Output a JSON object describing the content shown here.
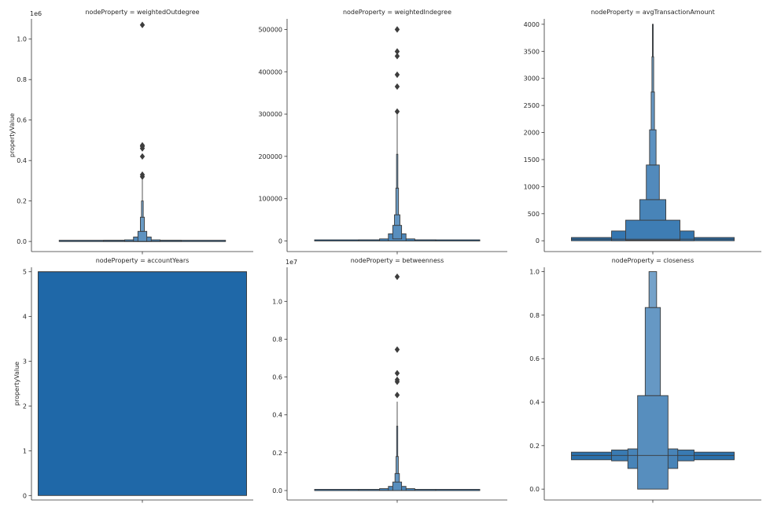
{
  "chart_data": {
    "type": "boxen",
    "ylabel": "propertyValue",
    "panels": [
      {
        "title": "nodeProperty = weightedOutdegree",
        "ylim": [
          -0.05,
          1.1
        ],
        "yticks": [
          0.0,
          0.2,
          0.4,
          0.6,
          0.8,
          1.0
        ],
        "ytick_labels": [
          "0.0",
          "0.2",
          "0.4",
          "0.6",
          "0.8",
          "1.0"
        ],
        "offset": "1e6",
        "show_ylabel": true,
        "levels": [
          {
            "lo": 0.0,
            "hi": 0.0,
            "w": 0.75
          },
          {
            "lo": 0.0,
            "hi": 0.002,
            "w": 0.35
          },
          {
            "lo": 0.0,
            "hi": 0.008,
            "w": 0.16
          },
          {
            "lo": 0.0,
            "hi": 0.022,
            "w": 0.08
          },
          {
            "lo": 0.0,
            "hi": 0.05,
            "w": 0.04
          },
          {
            "lo": 0.05,
            "hi": 0.12,
            "w": 0.018
          },
          {
            "lo": 0.12,
            "hi": 0.2,
            "w": 0.008
          }
        ],
        "median": 0.0,
        "whisker": [
          0.2,
          0.33
        ],
        "outliers": [
          0.32,
          0.33,
          0.42,
          0.46,
          0.47,
          0.475,
          1.07
        ]
      },
      {
        "title": "nodeProperty = weightedIndegree",
        "ylim": [
          -25000,
          525000
        ],
        "yticks": [
          0,
          100000,
          200000,
          300000,
          400000,
          500000
        ],
        "ytick_labels": [
          "0",
          "100000",
          "200000",
          "300000",
          "400000",
          "500000"
        ],
        "offset": "",
        "show_ylabel": false,
        "levels": [
          {
            "lo": 0,
            "hi": 0,
            "w": 0.75
          },
          {
            "lo": 0,
            "hi": 1500,
            "w": 0.35
          },
          {
            "lo": 0,
            "hi": 5000,
            "w": 0.16
          },
          {
            "lo": 0,
            "hi": 17000,
            "w": 0.08
          },
          {
            "lo": 5000,
            "hi": 37000,
            "w": 0.04
          },
          {
            "lo": 37000,
            "hi": 62000,
            "w": 0.025
          },
          {
            "lo": 62000,
            "hi": 125000,
            "w": 0.012
          },
          {
            "lo": 125000,
            "hi": 205000,
            "w": 0.006
          }
        ],
        "median": 0,
        "whisker": [
          205000,
          300000
        ],
        "outliers": [
          306000,
          365000,
          393000,
          437000,
          448000,
          500000
        ]
      },
      {
        "title": "nodeProperty = avgTransactionAmount",
        "ylim": [
          -200,
          4100
        ],
        "yticks": [
          0,
          500,
          1000,
          1500,
          2000,
          2500,
          3000,
          3500,
          4000
        ],
        "ytick_labels": [
          "0",
          "500",
          "1000",
          "1500",
          "2000",
          "2500",
          "3000",
          "3500",
          "4000"
        ],
        "offset": "",
        "show_ylabel": false,
        "levels": [
          {
            "lo": 0,
            "hi": 60,
            "w": 0.75
          },
          {
            "lo": 0,
            "hi": 180,
            "w": 0.38
          },
          {
            "lo": 10,
            "hi": 380,
            "w": 0.25
          },
          {
            "lo": 380,
            "hi": 760,
            "w": 0.12
          },
          {
            "lo": 760,
            "hi": 1400,
            "w": 0.06
          },
          {
            "lo": 1400,
            "hi": 2050,
            "w": 0.03
          },
          {
            "lo": 2050,
            "hi": 2750,
            "w": 0.015
          },
          {
            "lo": 2750,
            "hi": 3400,
            "w": 0.008
          },
          {
            "lo": 3400,
            "hi": 4000,
            "w": 0.004
          }
        ],
        "median": 30,
        "whisker": [
          4000,
          4000
        ],
        "outliers": []
      },
      {
        "title": "nodeProperty = accountYears",
        "ylim": [
          -0.1,
          5.1
        ],
        "yticks": [
          0,
          1,
          2,
          3,
          4,
          5
        ],
        "ytick_labels": [
          "0",
          "1",
          "2",
          "3",
          "4",
          "5"
        ],
        "offset": "",
        "show_ylabel": true,
        "levels": [
          {
            "lo": 0,
            "hi": 5,
            "w": 0.94
          }
        ],
        "median": 5,
        "whisker": [
          5,
          5
        ],
        "outliers": []
      },
      {
        "title": "nodeProperty = betweenness",
        "ylim": [
          -0.05,
          1.18
        ],
        "yticks": [
          0.0,
          0.2,
          0.4,
          0.6,
          0.8,
          1.0
        ],
        "ytick_labels": [
          "0.0",
          "0.2",
          "0.4",
          "0.6",
          "0.8",
          "1.0"
        ],
        "offset": "1e7",
        "show_ylabel": false,
        "levels": [
          {
            "lo": 0.0,
            "hi": 0.0,
            "w": 0.75
          },
          {
            "lo": 0.0,
            "hi": 0.003,
            "w": 0.35
          },
          {
            "lo": 0.0,
            "hi": 0.01,
            "w": 0.16
          },
          {
            "lo": 0.0,
            "hi": 0.022,
            "w": 0.08
          },
          {
            "lo": 0.0,
            "hi": 0.045,
            "w": 0.04
          },
          {
            "lo": 0.045,
            "hi": 0.09,
            "w": 0.02
          },
          {
            "lo": 0.09,
            "hi": 0.18,
            "w": 0.01
          },
          {
            "lo": 0.18,
            "hi": 0.34,
            "w": 0.005
          }
        ],
        "median": 0.0,
        "whisker": [
          0.34,
          0.47
        ],
        "outliers": [
          0.505,
          0.575,
          0.585,
          0.62,
          0.745,
          1.13
        ]
      },
      {
        "title": "nodeProperty = closeness",
        "ylim": [
          -0.05,
          1.02
        ],
        "yticks": [
          0.0,
          0.2,
          0.4,
          0.6,
          0.8,
          1.0
        ],
        "ytick_labels": [
          "0.0",
          "0.2",
          "0.4",
          "0.6",
          "0.8",
          "1.0"
        ],
        "offset": "",
        "show_ylabel": false,
        "levels": [
          {
            "lo": 0.135,
            "hi": 0.17,
            "w": 0.75
          },
          {
            "lo": 0.13,
            "hi": 0.18,
            "w": 0.38
          },
          {
            "lo": 0.095,
            "hi": 0.185,
            "w": 0.23
          },
          {
            "lo": 0.0,
            "hi": 0.43,
            "w": 0.14
          },
          {
            "lo": 0.43,
            "hi": 0.835,
            "w": 0.07
          },
          {
            "lo": 0.835,
            "hi": 1.0,
            "w": 0.035
          }
        ],
        "median": 0.155,
        "whisker": [
          1.0,
          1.0
        ],
        "outliers": []
      }
    ]
  }
}
